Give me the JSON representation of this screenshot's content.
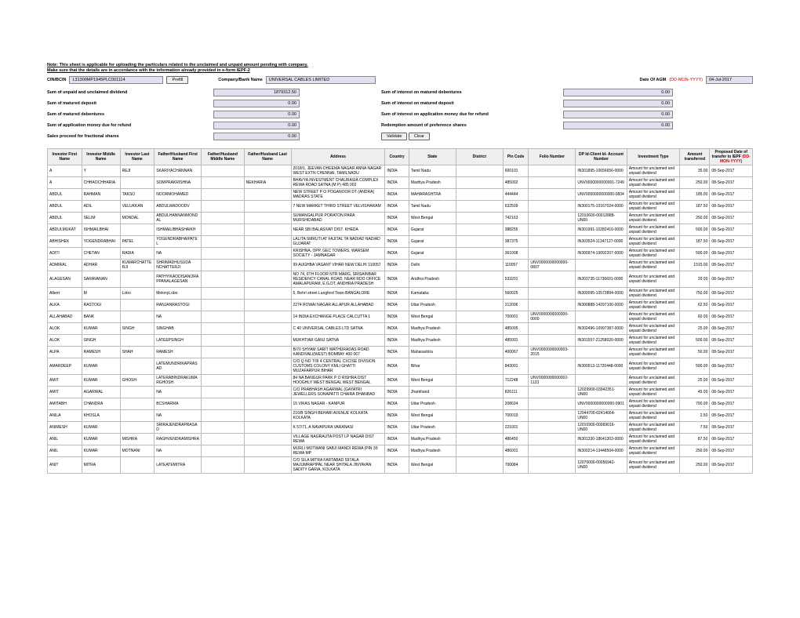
{
  "note1": "Note: This sheet is applicable for uploading the particulars related to the unclaimed and unpaid amount pending with company.",
  "note2": "Make sure that the details are in accordance with the information already provided in e-form IEPF-2",
  "top": {
    "cin_lbl": "CIN/BCIN",
    "cin": "L31300MP1945PLC001114",
    "prefill": "Prefill",
    "comp_lbl": "Company/Bank Name",
    "comp": "UNIVERSAL CABLES LIMITED",
    "agm_lbl": "Date Of AGM",
    "agm_fmt": "(DD-MON-YYYY)",
    "agm": "04-Jul-2017"
  },
  "sums": [
    {
      "l": "Sum of unpaid and unclaimed dividend",
      "v": "1879312.50",
      "r": "",
      "rv": "0.00",
      "rl": "Sum of interest on matured debentures"
    },
    {
      "l": "Sum of matured deposit",
      "v": "0.00",
      "r": "",
      "rv": "0.00",
      "rl": "Sum of interest on matured deposit"
    },
    {
      "l": "Sum of matured debentures",
      "v": "0.00",
      "r": "",
      "rv": "0.00",
      "rl": "Sum of interest on application money due for refund"
    },
    {
      "l": "Sum of application money due for refund",
      "v": "0.00",
      "r": "",
      "rv": "0.00",
      "rl": "Redemption amount of preference shares"
    },
    {
      "l": "Sales proceed for fractional shares",
      "v": "0.00",
      "r": "",
      "rv": "",
      "rl": ""
    }
  ],
  "btns": {
    "validate": "Validate",
    "clear": "Clear"
  },
  "cols": [
    "Investor First Name",
    "Investor Middle Name",
    "Investor Last Name",
    "Father/Husband First Name",
    "Father/Husband Middle Name",
    "Father/Husband Last Name",
    "Address",
    "Country",
    "State",
    "District",
    "Pin Code",
    "Folio Number",
    "DP Id-Client Id- Account Number",
    "Investment Type",
    "Amount transferred",
    "Proposed Date of transfer to IEPF"
  ],
  "fmt_hint": "(DD-MON-YYYY)",
  "rows": [
    [
      "A",
      "Y",
      "REJI",
      "SKARIYACHANNAN",
      "",
      "",
      "2018/1, JEEVAN DHEEMA NAGAR ANNA NAGAR WEST EXTN CHENNAI, TAMILNADU",
      "INDIA",
      "Tamil Nadu",
      "",
      "600101",
      "",
      "IN301895-10656656-0000",
      "Amount for unclaimed and unpaid dividend",
      "35.00",
      "08-Sep-2017"
    ],
    [
      "A",
      "CHHAOCHHARIA",
      "",
      "SOMPRAKRISHNA",
      "",
      "NEKHARIA",
      "BHAVYA INVESTMENT CHAURASIA COMPLEX REWA ROAD SATNA (M P) 485 002",
      "INDIA",
      "Madhya Pradesh",
      "",
      "485002",
      "",
      "UNV0000000000001-7249",
      "Amount for unclaimed and unpaid dividend",
      "250.00",
      "08-Sep-2017"
    ],
    [
      "ABDUL",
      "RAHMAN",
      "TAKSO",
      "NOORMOHAMED",
      "",
      "",
      "NEW STREET P O POGANOOR DT (ANDRA) MADRAS STATE",
      "INDIA",
      "MAHARASHTRA",
      "",
      "444444",
      "",
      "UNV0000000000000-0834",
      "Amount for unclaimed and unpaid dividend",
      "185.00",
      "08-Sep-2017"
    ],
    [
      "ABDUL",
      "ADIL",
      "VELUKKAN",
      "ABDULWADOODV",
      "",
      "",
      "7 NEW MARKET THIRD STREET VELVISHARAM",
      "INDIA",
      "Tamil Nadu",
      "",
      "632509",
      "",
      "IN300175-10167024-0000",
      "Amount for unclaimed and unpaid dividend",
      "187.50",
      "08-Sep-2017"
    ],
    [
      "ABDUL",
      "SELIM",
      "MONDAL",
      "ABDULHANNANMONDAL",
      "",
      "",
      "SUMANGALPUR PORATON PARA MURSHIDABAD",
      "INDIA",
      "West Bengal",
      "",
      "742163",
      "",
      "12010600-00012888-UN00",
      "Amount for unclaimed and unpaid dividend",
      "250.00",
      "08-Sep-2017"
    ],
    [
      "ABDULMUKAT",
      "ISHMAILBHAI",
      "",
      "ISHMAILIBHASHAIKH",
      "",
      "",
      "NEAR SBI BALASIVAT DIST. KHEDA",
      "INDIA",
      "Gujarat",
      "",
      "388255",
      "",
      "IN301991-10282416-0000",
      "Amount for unclaimed and unpaid dividend",
      "500.00",
      "08-Sep-2017"
    ],
    [
      "ABHISHEK",
      "YOGENDRABHAI",
      "PATEL",
      "YOGENDRABHAIPATEL",
      "",
      "",
      "LALITA SMRUTI AT FAJITAL TA NADIAD NADIAD GUJARAT",
      "INDIA",
      "Gujarat",
      "",
      "387375",
      "",
      "IN303524-11347127-0000",
      "Amount for unclaimed and unpaid dividend",
      "187.50",
      "08-Sep-2017"
    ],
    [
      "ADITI",
      "CHETAN",
      "RADIA",
      "NA",
      "",
      "",
      "KRISHNA, OPP. GEC TOWERS, WARSEM SOCIETY - JAMNAGAR",
      "INDIA",
      "Gujarat",
      "",
      "361008",
      "",
      "IN300974-10092207-0000",
      "Amount for unclaimed and unpaid dividend",
      "500.00",
      "08-Sep-2017"
    ],
    [
      "ADMIRAL",
      "ADHAR",
      "KUMARCHATTERJI",
      "SHRIMADHUSUDA NCHATTERJI",
      "",
      "",
      "99 AUGHBA VASANT VIHAR NEW DELHI 110057",
      "INDIA",
      "Delhi",
      "",
      "110057",
      "UNV0000000000000-0807",
      "",
      "Amount for unclaimed and unpaid dividend",
      "1515.00",
      "08-Sep-2017"
    ],
    [
      "ALAGESAN",
      "SARAVANAN",
      "",
      "PATHYIKAODISANORAPPANALAGESAN",
      "",
      "",
      "NO 74, 6TH FLOOR NTR MARG, SRISAINBAR RESIDENCY CANAL ROAD, NEAR RDO OFFICE AMALAPURAM, E.G.DT, ANDHRA PRADESH",
      "INDIA",
      "Andhra Pradesh",
      "",
      "533201",
      "",
      "IN303735-11736691-0000",
      "Amount for unclaimed and unpaid dividend",
      "20.00",
      "08-Sep-2017"
    ],
    [
      "Albert",
      "M",
      "Lobo",
      "MelonyLobo",
      "",
      "",
      "5, Behri street Langford Town BANGALORE",
      "INDIA",
      "Karnataka",
      "",
      "560025",
      "",
      "IN300095-10573894-0000",
      "Amount for unclaimed and unpaid dividend",
      "750.00",
      "08-Sep-2017"
    ],
    [
      "ALKA",
      "RASTOGI",
      "",
      "RANJANRASTOGI",
      "",
      "",
      "2274 ROWAI NAGAR ALLAPUR ALLAHABAD",
      "INDIA",
      "Uttar Pradesh",
      "",
      "212006",
      "",
      "IN300888-14297106-0000",
      "Amount for unclaimed and unpaid dividend",
      "62.50",
      "08-Sep-2017"
    ],
    [
      "ALLAHABAD",
      "BANK",
      "",
      "NA",
      "",
      "",
      "14 INDIA EXCHANGE PLACE CALCUTTA 1",
      "INDIA",
      "West Bengal",
      "",
      "700001",
      "UNV0000000000000-0000",
      "",
      "Amount for unclaimed and unpaid dividend",
      "60.00",
      "08-Sep-2017"
    ],
    [
      "ALOK",
      "KUMAR",
      "SINGH",
      "SINGHAB",
      "",
      "",
      "C 40 UNIVERSAL CABLES LTD SATNA",
      "INDIA",
      "Madhya Pradesh",
      "",
      "485005",
      "",
      "IN302496-10997387-0000",
      "Amount for unclaimed and unpaid dividend",
      "25.00",
      "08-Sep-2017"
    ],
    [
      "ALOK",
      "SINGH",
      "",
      "LATEEPSINGH",
      "",
      "",
      "MUKHTIAR GANJ SATNA",
      "INDIA",
      "Madhya Pradesh",
      "",
      "485001",
      "",
      "IN301557-21258020-0000",
      "Amount for unclaimed and unpaid dividend",
      "500.00",
      "08-Sep-2017"
    ],
    [
      "ALPA",
      "RAMESH",
      "SHAH",
      "RAMESH",
      "",
      "",
      "B/70 SHYAM SARIT MATHURADAS ROAD KANDIVALI(WEST) BOMBAY 400 067",
      "INDIA",
      "Maharashtra",
      "",
      "400067",
      "UNV0000000000003-2015",
      "",
      "Amount for unclaimed and unpaid dividend",
      "50.00",
      "08-Sep-2017"
    ],
    [
      "AMARDEEP",
      "KUMAR",
      "",
      "LATEMUNDRIKAPRASAD",
      "",
      "",
      "C/O Q NO T/III 4 CENTRAL CXCISE DIVISION CUSTOMS COLONY KMLI GHATTI MUZAFARPUR BIHAR",
      "INDIA",
      "Bihar",
      "",
      "843001",
      "",
      "IN300513-11720448-0000",
      "Amount for unclaimed and unpaid dividend",
      "500.00",
      "08-Sep-2017"
    ],
    [
      "AMIT",
      "KUMAR",
      "GHOSH",
      "LATERABINDRAKUMARGHOSH",
      "",
      "",
      "84 NA BANGUR PARK P O RISHRA DIST HOOGHLY WEST BENGAL WEST BENGAL",
      "INDIA",
      "West Bengal",
      "",
      "712248",
      "UNV0000000000002-1123",
      "",
      "Amount for unclaimed and unpaid dividend",
      "25.00",
      "08-Sep-2017"
    ],
    [
      "AMIT",
      "AGARWAL",
      "",
      "NA",
      "",
      "",
      "C/O PRABHASH AGARWAL (GAYATRI JEWELLERS SONAPATTI CHAIRA DHANBAD",
      "INDIA",
      "Jharkhand",
      "",
      "826111",
      "",
      "12029900-03942351-UN00",
      "Amount for unclaimed and unpaid dividend",
      "45.00",
      "08-Sep-2017"
    ],
    [
      "AMITABH",
      "CHANDRA",
      "",
      "BCSHARMA",
      "",
      "",
      "15 VIKAS NAGAR - KANPUR",
      "INDIA",
      "Uttar Pradesh",
      "",
      "208024",
      "",
      "UNV0000000000000-0901",
      "Amount for unclaimed and unpaid dividend",
      "700.00",
      "08-Sep-2017"
    ],
    [
      "ANILA",
      "KHOSLA",
      "",
      "NA",
      "",
      "",
      "216/B SINGH BEHARI AVENUE KOLKATA KOLKATA",
      "INDIA",
      "West Bengal",
      "",
      "700019",
      "",
      "12044700-02414664-UN00",
      "Amount for unclaimed and unpaid dividend",
      "2.50",
      "08-Sep-2017"
    ],
    [
      "ANIMESH",
      "KUMAR",
      "",
      "SRIRAJENDRAPRASAD",
      "",
      "",
      "K 57/71, A NAVAPURA VARANASI",
      "INDIA",
      "Uttar Pradesh",
      "",
      "221001",
      "",
      "12010900-00069016-UN00",
      "Amount for unclaimed and unpaid dividend",
      "7.50",
      "08-Sep-2017"
    ],
    [
      "ANIL",
      "KUMAR",
      "MISHRA",
      "RAGHVENDRAMISHRA",
      "",
      "",
      "VILLAGE NAGRAUTA POST LP NAGAR DIST REWA",
      "INDIA",
      "Madhya Pradesh",
      "",
      "486450",
      "",
      "IN301330-18641303-0000",
      "Amount for unclaimed and unpaid dividend",
      "87.50",
      "08-Sep-2017"
    ],
    [
      "ANIL",
      "KUMAR",
      "MOTNANI",
      "NA",
      "",
      "",
      "MURLI MOTWANI SABJI MANDI REWA (PIN 39 REWA MP",
      "INDIA",
      "Madhya Pradesh",
      "",
      "486001",
      "",
      "IN300214-13448504-0000",
      "Amount for unclaimed and unpaid dividend",
      "250.00",
      "08-Sep-2017"
    ],
    [
      "ANIT",
      "MITRA",
      "",
      "LATEATEMITRA",
      "",
      "",
      "C/O SILA MITRA FARTABAD 597ALA MAJUMRAPIPAL NEAR SHITALA JINYAVAN SADITY GARIA, KOLKATA",
      "INDIA",
      "West Bengal",
      "",
      "700084",
      "",
      "12070000-00056942-UN00",
      "Amount for unclaimed and unpaid dividend",
      "250.00",
      "08-Sep-2017"
    ]
  ]
}
